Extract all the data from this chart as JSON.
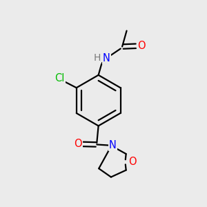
{
  "background_color": "#ebebeb",
  "bond_color": "#000000",
  "bond_width": 1.6,
  "atom_colors": {
    "N": "#0000ff",
    "O": "#ff0000",
    "Cl": "#00bb00",
    "H": "#7a7a7a"
  },
  "font_size": 10.5
}
